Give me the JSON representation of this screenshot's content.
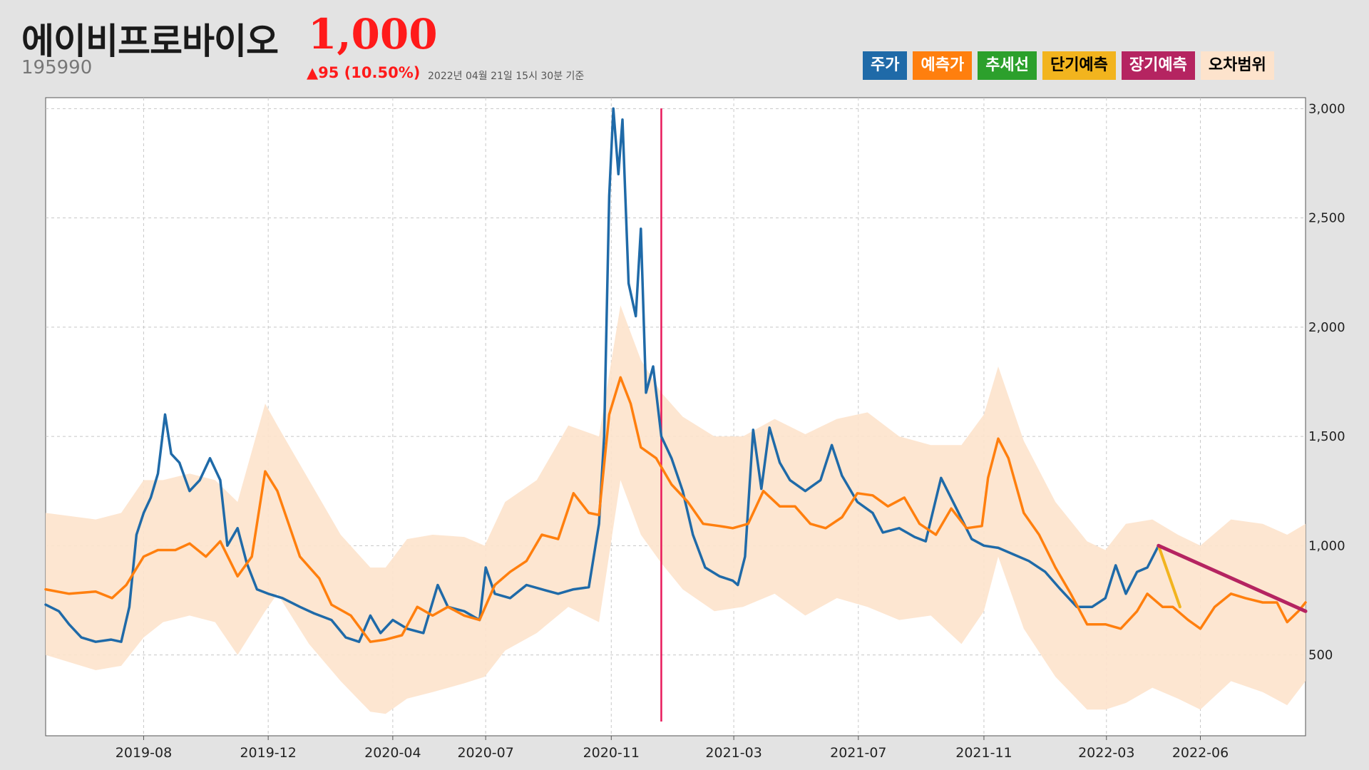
{
  "header": {
    "name": "에이비프로바이오",
    "price": "1,000",
    "code": "195990",
    "change": "▲95 (10.50%)",
    "timestamp": "2022년 04월 21일 15시 30분 기준"
  },
  "legend": [
    {
      "label": "주가",
      "color": "#1f6aa8",
      "text_color": "#ffffff"
    },
    {
      "label": "예측가",
      "color": "#ff7f0e",
      "text_color": "#ffffff"
    },
    {
      "label": "추세선",
      "color": "#2ca02c",
      "text_color": "#ffffff"
    },
    {
      "label": "단기예측",
      "color": "#f2b41e",
      "text_color": "#000000"
    },
    {
      "label": "장기예측",
      "color": "#b52461",
      "text_color": "#ffffff"
    },
    {
      "label": "오차범위",
      "color": "#fde3cc",
      "text_color": "#000000"
    }
  ],
  "chart_data": {
    "type": "line",
    "x_ticks": [
      "2019-08",
      "2019-12",
      "2020-04",
      "2020-07",
      "2020-11",
      "2021-03",
      "2021-07",
      "2021-11",
      "2022-03",
      "2022-06"
    ],
    "y_ticks": [
      "3,000",
      "2,500",
      "2,000",
      "1,500",
      "1,000",
      "500"
    ],
    "ylim": [
      130,
      3050
    ],
    "xlim": [
      "2019-04-27",
      "2022-09-12"
    ],
    "marker_date": "2020-12-20",
    "series": [
      {
        "name": "주가",
        "color": "#1f6aa8",
        "points": [
          [
            "2019-04-27",
            730
          ],
          [
            "2019-05-10",
            700
          ],
          [
            "2019-05-20",
            640
          ],
          [
            "2019-06-01",
            580
          ],
          [
            "2019-06-15",
            560
          ],
          [
            "2019-06-30",
            570
          ],
          [
            "2019-07-10",
            560
          ],
          [
            "2019-07-18",
            720
          ],
          [
            "2019-07-25",
            1050
          ],
          [
            "2019-08-01",
            1150
          ],
          [
            "2019-08-08",
            1220
          ],
          [
            "2019-08-15",
            1330
          ],
          [
            "2019-08-22",
            1600
          ],
          [
            "2019-08-28",
            1420
          ],
          [
            "2019-09-05",
            1380
          ],
          [
            "2019-09-15",
            1250
          ],
          [
            "2019-09-25",
            1300
          ],
          [
            "2019-10-05",
            1400
          ],
          [
            "2019-10-15",
            1300
          ],
          [
            "2019-10-22",
            1000
          ],
          [
            "2019-11-01",
            1080
          ],
          [
            "2019-11-10",
            920
          ],
          [
            "2019-11-20",
            800
          ],
          [
            "2019-12-01",
            780
          ],
          [
            "2019-12-15",
            760
          ],
          [
            "2020-01-01",
            720
          ],
          [
            "2020-01-15",
            690
          ],
          [
            "2020-02-01",
            660
          ],
          [
            "2020-02-15",
            580
          ],
          [
            "2020-02-28",
            560
          ],
          [
            "2020-03-10",
            680
          ],
          [
            "2020-03-20",
            600
          ],
          [
            "2020-04-01",
            660
          ],
          [
            "2020-04-15",
            620
          ],
          [
            "2020-05-01",
            600
          ],
          [
            "2020-05-15",
            820
          ],
          [
            "2020-05-25",
            720
          ],
          [
            "2020-06-10",
            700
          ],
          [
            "2020-06-25",
            660
          ],
          [
            "2020-07-01",
            900
          ],
          [
            "2020-07-10",
            780
          ],
          [
            "2020-07-25",
            760
          ],
          [
            "2020-08-10",
            820
          ],
          [
            "2020-08-25",
            800
          ],
          [
            "2020-09-10",
            780
          ],
          [
            "2020-09-25",
            800
          ],
          [
            "2020-10-10",
            810
          ],
          [
            "2020-10-20",
            1100
          ],
          [
            "2020-10-25",
            1500
          ],
          [
            "2020-10-30",
            2600
          ],
          [
            "2020-11-03",
            3000
          ],
          [
            "2020-11-08",
            2700
          ],
          [
            "2020-11-12",
            2950
          ],
          [
            "2020-11-18",
            2200
          ],
          [
            "2020-11-25",
            2050
          ],
          [
            "2020-11-30",
            2450
          ],
          [
            "2020-12-05",
            1700
          ],
          [
            "2020-12-12",
            1820
          ],
          [
            "2020-12-20",
            1500
          ],
          [
            "2020-12-30",
            1400
          ],
          [
            "2021-01-10",
            1250
          ],
          [
            "2021-01-20",
            1050
          ],
          [
            "2021-02-01",
            900
          ],
          [
            "2021-02-15",
            860
          ],
          [
            "2021-02-28",
            840
          ],
          [
            "2021-03-05",
            820
          ],
          [
            "2021-03-12",
            950
          ],
          [
            "2021-03-20",
            1530
          ],
          [
            "2021-03-28",
            1260
          ],
          [
            "2021-04-05",
            1540
          ],
          [
            "2021-04-15",
            1380
          ],
          [
            "2021-04-25",
            1300
          ],
          [
            "2021-05-10",
            1250
          ],
          [
            "2021-05-25",
            1300
          ],
          [
            "2021-06-05",
            1460
          ],
          [
            "2021-06-15",
            1320
          ],
          [
            "2021-06-30",
            1200
          ],
          [
            "2021-07-15",
            1150
          ],
          [
            "2021-07-25",
            1060
          ],
          [
            "2021-08-10",
            1080
          ],
          [
            "2021-08-25",
            1040
          ],
          [
            "2021-09-05",
            1020
          ],
          [
            "2021-09-20",
            1310
          ],
          [
            "2021-10-05",
            1170
          ],
          [
            "2021-10-20",
            1030
          ],
          [
            "2021-11-01",
            1000
          ],
          [
            "2021-11-15",
            990
          ],
          [
            "2021-11-30",
            960
          ],
          [
            "2021-12-15",
            930
          ],
          [
            "2021-12-31",
            880
          ],
          [
            "2022-01-15",
            800
          ],
          [
            "2022-01-31",
            720
          ],
          [
            "2022-02-15",
            720
          ],
          [
            "2022-02-28",
            760
          ],
          [
            "2022-03-10",
            910
          ],
          [
            "2022-03-20",
            780
          ],
          [
            "2022-03-31",
            880
          ],
          [
            "2022-04-10",
            900
          ],
          [
            "2022-04-21",
            1000
          ]
        ]
      },
      {
        "name": "예측가",
        "color": "#ff7f0e",
        "points": [
          [
            "2019-04-27",
            800
          ],
          [
            "2019-05-20",
            780
          ],
          [
            "2019-06-15",
            790
          ],
          [
            "2019-07-01",
            760
          ],
          [
            "2019-07-15",
            820
          ],
          [
            "2019-08-01",
            950
          ],
          [
            "2019-08-15",
            980
          ],
          [
            "2019-09-01",
            980
          ],
          [
            "2019-09-15",
            1010
          ],
          [
            "2019-10-01",
            950
          ],
          [
            "2019-10-15",
            1020
          ],
          [
            "2019-11-01",
            860
          ],
          [
            "2019-11-15",
            950
          ],
          [
            "2019-11-28",
            1340
          ],
          [
            "2019-12-10",
            1250
          ],
          [
            "2020-01-01",
            950
          ],
          [
            "2020-01-20",
            850
          ],
          [
            "2020-02-01",
            730
          ],
          [
            "2020-02-20",
            680
          ],
          [
            "2020-03-10",
            560
          ],
          [
            "2020-03-25",
            570
          ],
          [
            "2020-04-10",
            590
          ],
          [
            "2020-04-25",
            720
          ],
          [
            "2020-05-10",
            680
          ],
          [
            "2020-05-25",
            720
          ],
          [
            "2020-06-10",
            680
          ],
          [
            "2020-06-25",
            660
          ],
          [
            "2020-07-10",
            820
          ],
          [
            "2020-07-25",
            880
          ],
          [
            "2020-08-10",
            930
          ],
          [
            "2020-08-25",
            1050
          ],
          [
            "2020-09-10",
            1030
          ],
          [
            "2020-09-25",
            1240
          ],
          [
            "2020-10-10",
            1150
          ],
          [
            "2020-10-20",
            1140
          ],
          [
            "2020-10-30",
            1600
          ],
          [
            "2020-11-10",
            1770
          ],
          [
            "2020-11-20",
            1650
          ],
          [
            "2020-11-30",
            1450
          ],
          [
            "2020-12-15",
            1400
          ],
          [
            "2020-12-30",
            1280
          ],
          [
            "2021-01-15",
            1200
          ],
          [
            "2021-01-30",
            1100
          ],
          [
            "2021-02-15",
            1090
          ],
          [
            "2021-02-28",
            1080
          ],
          [
            "2021-03-15",
            1100
          ],
          [
            "2021-03-30",
            1250
          ],
          [
            "2021-04-15",
            1180
          ],
          [
            "2021-04-30",
            1180
          ],
          [
            "2021-05-15",
            1100
          ],
          [
            "2021-05-30",
            1080
          ],
          [
            "2021-06-15",
            1130
          ],
          [
            "2021-06-30",
            1240
          ],
          [
            "2021-07-15",
            1230
          ],
          [
            "2021-07-30",
            1180
          ],
          [
            "2021-08-15",
            1220
          ],
          [
            "2021-08-30",
            1100
          ],
          [
            "2021-09-15",
            1050
          ],
          [
            "2021-09-30",
            1170
          ],
          [
            "2021-10-15",
            1080
          ],
          [
            "2021-10-30",
            1090
          ],
          [
            "2021-11-05",
            1310
          ],
          [
            "2021-11-15",
            1490
          ],
          [
            "2021-11-25",
            1400
          ],
          [
            "2021-12-10",
            1150
          ],
          [
            "2021-12-25",
            1050
          ],
          [
            "2022-01-10",
            900
          ],
          [
            "2022-01-25",
            780
          ],
          [
            "2022-02-10",
            640
          ],
          [
            "2022-02-28",
            640
          ],
          [
            "2022-03-15",
            620
          ],
          [
            "2022-03-31",
            700
          ],
          [
            "2022-04-10",
            780
          ],
          [
            "2022-04-25",
            720
          ],
          [
            "2022-05-05",
            720
          ],
          [
            "2022-05-20",
            660
          ],
          [
            "2022-06-01",
            620
          ],
          [
            "2022-06-15",
            720
          ],
          [
            "2022-07-01",
            780
          ],
          [
            "2022-07-15",
            760
          ],
          [
            "2022-08-01",
            740
          ],
          [
            "2022-08-15",
            740
          ],
          [
            "2022-08-25",
            650
          ],
          [
            "2022-09-05",
            700
          ],
          [
            "2022-09-12",
            740
          ]
        ]
      },
      {
        "name": "단기예측",
        "color": "#f2b41e",
        "points": [
          [
            "2022-04-21",
            1000
          ],
          [
            "2022-05-12",
            720
          ]
        ]
      },
      {
        "name": "장기예측",
        "color": "#b52461",
        "points": [
          [
            "2022-04-21",
            1000
          ],
          [
            "2022-09-12",
            700
          ]
        ]
      }
    ],
    "band": {
      "name": "오차범위",
      "color": "#fde3cc",
      "points": [
        [
          "2019-04-27",
          500,
          1150
        ],
        [
          "2019-06-15",
          430,
          1120
        ],
        [
          "2019-07-10",
          450,
          1150
        ],
        [
          "2019-08-01",
          580,
          1300
        ],
        [
          "2019-08-20",
          650,
          1300
        ],
        [
          "2019-09-15",
          680,
          1330
        ],
        [
          "2019-10-10",
          650,
          1300
        ],
        [
          "2019-11-01",
          500,
          1200
        ],
        [
          "2019-11-28",
          700,
          1650
        ],
        [
          "2019-12-10",
          780,
          1550
        ],
        [
          "2020-01-10",
          550,
          1300
        ],
        [
          "2020-02-10",
          380,
          1050
        ],
        [
          "2020-03-10",
          240,
          900
        ],
        [
          "2020-03-25",
          230,
          900
        ],
        [
          "2020-04-15",
          300,
          1030
        ],
        [
          "2020-05-10",
          330,
          1050
        ],
        [
          "2020-06-10",
          370,
          1040
        ],
        [
          "2020-06-30",
          400,
          1000
        ],
        [
          "2020-07-20",
          520,
          1200
        ],
        [
          "2020-08-20",
          600,
          1300
        ],
        [
          "2020-09-20",
          720,
          1550
        ],
        [
          "2020-10-20",
          650,
          1500
        ],
        [
          "2020-11-10",
          1300,
          2100
        ],
        [
          "2020-11-30",
          1050,
          1850
        ],
        [
          "2020-12-20",
          920,
          1700
        ],
        [
          "2021-01-10",
          800,
          1590
        ],
        [
          "2021-02-10",
          700,
          1500
        ],
        [
          "2021-03-10",
          720,
          1500
        ],
        [
          "2021-04-10",
          780,
          1580
        ],
        [
          "2021-05-10",
          680,
          1510
        ],
        [
          "2021-06-10",
          760,
          1580
        ],
        [
          "2021-07-10",
          720,
          1610
        ],
        [
          "2021-08-10",
          660,
          1500
        ],
        [
          "2021-09-10",
          680,
          1460
        ],
        [
          "2021-10-10",
          550,
          1460
        ],
        [
          "2021-11-01",
          700,
          1600
        ],
        [
          "2021-11-15",
          950,
          1820
        ],
        [
          "2021-12-10",
          620,
          1480
        ],
        [
          "2022-01-10",
          400,
          1200
        ],
        [
          "2022-02-10",
          250,
          1020
        ],
        [
          "2022-02-28",
          250,
          980
        ],
        [
          "2022-03-20",
          280,
          1100
        ],
        [
          "2022-04-15",
          350,
          1120
        ],
        [
          "2022-05-10",
          300,
          1050
        ],
        [
          "2022-06-01",
          250,
          1000
        ],
        [
          "2022-07-01",
          380,
          1120
        ],
        [
          "2022-08-01",
          330,
          1100
        ],
        [
          "2022-08-25",
          270,
          1050
        ],
        [
          "2022-09-12",
          380,
          1100
        ]
      ]
    }
  }
}
